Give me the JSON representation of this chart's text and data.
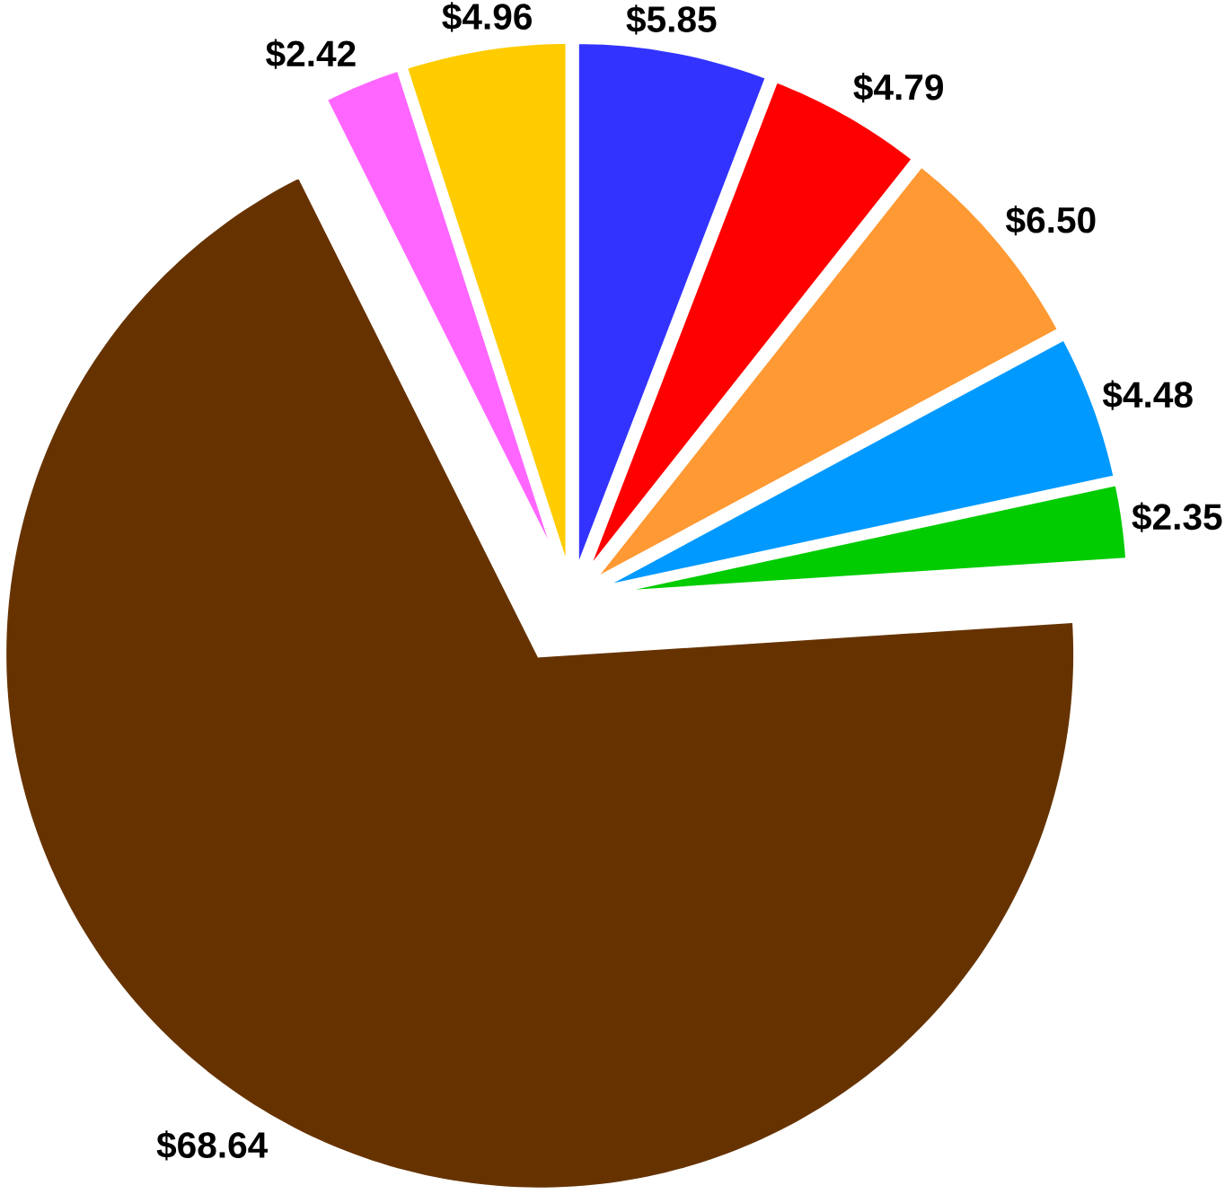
{
  "chart_data": {
    "type": "pie",
    "categories": [
      null,
      null,
      null,
      null,
      null,
      null,
      null,
      null
    ],
    "values": [
      5.85,
      4.79,
      6.5,
      4.48,
      2.35,
      68.64,
      2.42,
      4.96
    ],
    "colors": [
      "#3333ff",
      "#ff0000",
      "#ff9933",
      "#0099ff",
      "#00cc00",
      "#663300",
      "#ff66ff",
      "#ffcc00"
    ],
    "value_labels": [
      "$5.85",
      "$4.79",
      "$6.50",
      "$4.48",
      "$2.35",
      "$68.64",
      "$2.42",
      "$4.96"
    ]
  }
}
